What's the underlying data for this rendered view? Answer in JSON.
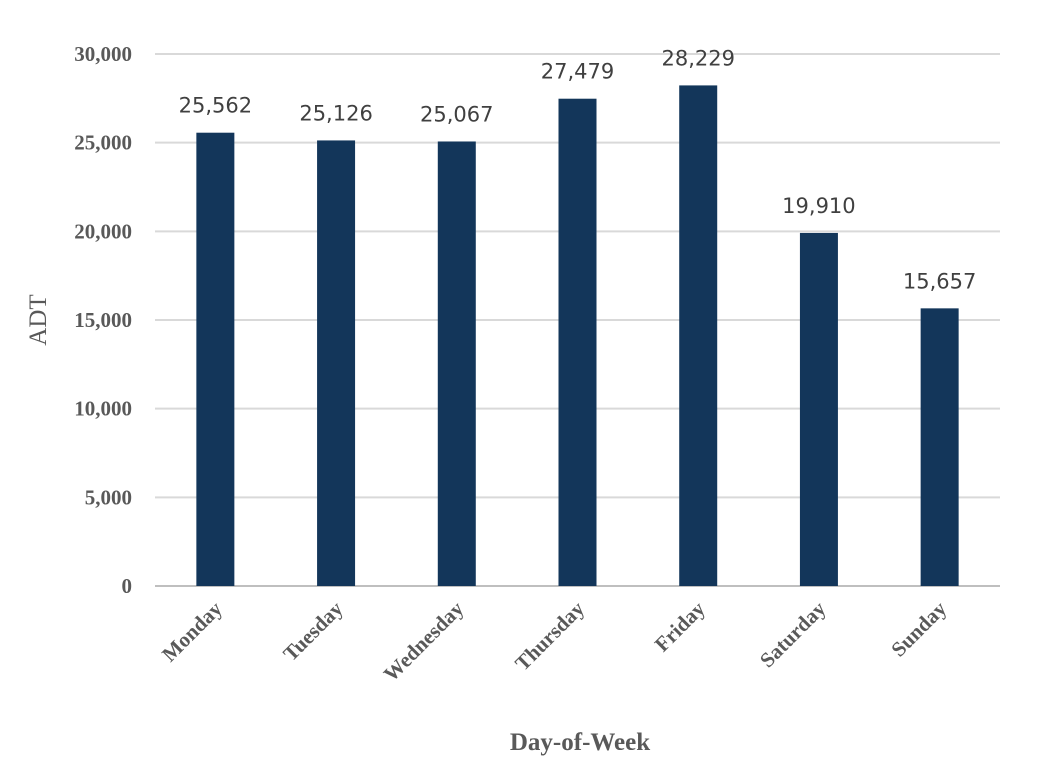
{
  "chart_data": {
    "type": "bar",
    "categories": [
      "Monday",
      "Tuesday",
      "Wednesday",
      "Thursday",
      "Friday",
      "Saturday",
      "Sunday"
    ],
    "series": [
      {
        "values": [
          25562,
          25126,
          25067,
          27479,
          28229,
          19910,
          15657
        ]
      }
    ],
    "data_labels": [
      "25,562",
      "25,126",
      "25,067",
      "27,479",
      "28,229",
      "19,910",
      "15,657"
    ],
    "y_ticks": [
      0,
      5000,
      10000,
      15000,
      20000,
      25000,
      30000
    ],
    "y_tick_labels": [
      "0",
      "5,000",
      "10,000",
      "15,000",
      "20,000",
      "25,000",
      "30,000"
    ],
    "xlabel": "Day-of-Week",
    "ylabel": "ADT",
    "ylim": [
      0,
      30000
    ],
    "grid": true,
    "legend": "none",
    "bar_color": "#13365a"
  }
}
